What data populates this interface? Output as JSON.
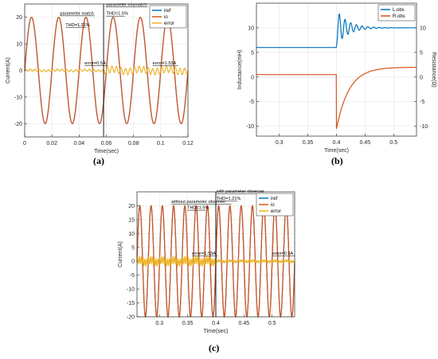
{
  "chart_data": [
    {
      "panel_label": "(a)",
      "type": "line",
      "xlabel": "Time(sec)",
      "ylabel": "Current(A)",
      "xlim": [
        0,
        0.12
      ],
      "ylim": [
        -25,
        25
      ],
      "xticks": [
        "0",
        "0.02",
        "0.04",
        "0.06",
        "0.08",
        "0.1",
        "0.12"
      ],
      "yticks": [
        "-20",
        "-10",
        "0",
        "10",
        "20"
      ],
      "grid": true,
      "legend_position": "top-right",
      "series": [
        {
          "name": "iref",
          "color": "#0072BD",
          "kind": "sine",
          "amplitude": 20,
          "frequency_hz": 50
        },
        {
          "name": "io",
          "color": "#D95319",
          "kind": "sine",
          "amplitude": 20,
          "frequency_hz": 50
        },
        {
          "name": "error",
          "color": "#EDB120",
          "kind": "ripple",
          "amplitude_before": 0.5,
          "amplitude_after": 1.53,
          "switch_time": 0.058
        }
      ],
      "annotations": [
        {
          "text": "parameter match",
          "x": 0.026,
          "y": 21
        },
        {
          "text": "THD=1.21%",
          "x": 0.03,
          "y": 16.6
        },
        {
          "text": "parameter mismatch",
          "x": 0.06,
          "y": 24.3
        },
        {
          "text": "THD=1.5%",
          "x": 0.06,
          "y": 20.9
        },
        {
          "text": "error=0.5A",
          "x": 0.044,
          "y": 2.2
        },
        {
          "text": "error=1.53A",
          "x": 0.094,
          "y": 2.2
        }
      ],
      "vlines": [
        0.058
      ]
    },
    {
      "panel_label": "(b)",
      "type": "line",
      "xlabel": "Time(sec)",
      "ylabel": "Inductance(mH)",
      "ylabel_right": "Resistance(Ω)",
      "xlim": [
        0.26,
        0.54
      ],
      "ylim": [
        -12,
        15
      ],
      "xticks": [
        "0.3",
        "0.35",
        "0.4",
        "0.45",
        "0.5"
      ],
      "yticks": [
        "-10",
        "-5",
        "0",
        "5",
        "10"
      ],
      "yticks_right": [
        "-10",
        "-5",
        "0",
        "5",
        "10"
      ],
      "grid": true,
      "legend_position": "top-right",
      "series": [
        {
          "name": "L.obs",
          "color": "#0072BD",
          "kind": "step-oscillation",
          "before": 6,
          "after": 10,
          "switch_time": 0.4
        },
        {
          "name": "R.obs",
          "color": "#D95319",
          "kind": "step-dip",
          "before": 0.5,
          "dip": -10.5,
          "after": 2,
          "switch_time": 0.4
        }
      ]
    },
    {
      "panel_label": "(c)",
      "type": "line",
      "xlabel": "Time(sec)",
      "ylabel": "Current(A)",
      "xlim": [
        0.26,
        0.54
      ],
      "ylim": [
        -20,
        25
      ],
      "xticks": [
        "0.3",
        "0.35",
        "0.4",
        "0.45",
        "0.5"
      ],
      "yticks": [
        "-20",
        "-15",
        "-10",
        "-5",
        "0",
        "5",
        "10",
        "15",
        "20"
      ],
      "grid": true,
      "legend_position": "top-right",
      "series": [
        {
          "name": "iref",
          "color": "#0072BD",
          "kind": "sine",
          "amplitude": 20,
          "frequency_hz": 50
        },
        {
          "name": "io",
          "color": "#D95319",
          "kind": "sine",
          "amplitude": 20,
          "frequency_hz": 50
        },
        {
          "name": "error",
          "color": "#EDB120",
          "kind": "ripple",
          "amplitude_before": 1.53,
          "amplitude_after": 0.5,
          "switch_time": 0.4
        }
      ],
      "annotations": [
        {
          "text": "with parameter observer",
          "x": 0.401,
          "y": 24.7
        },
        {
          "text": "THD=1.21%",
          "x": 0.401,
          "y": 22.2
        },
        {
          "text": "without parameter observer",
          "x": 0.321,
          "y": 21
        },
        {
          "text": "THD=1.5%",
          "x": 0.349,
          "y": 18.8
        },
        {
          "text": "error=1.53A",
          "x": 0.358,
          "y": 2.3
        },
        {
          "text": "error=0.5A",
          "x": 0.5,
          "y": 2.3
        }
      ],
      "vlines": [
        0.4
      ]
    }
  ]
}
